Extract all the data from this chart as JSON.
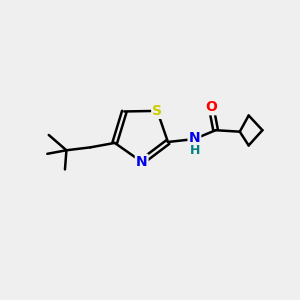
{
  "background_color": "#efefef",
  "bond_color": "#000000",
  "atom_colors": {
    "S": "#cccc00",
    "N": "#0000ee",
    "O": "#ff0000",
    "NH_N": "#0000ee",
    "NH_H": "#008080",
    "C": "#000000"
  },
  "bond_width": 1.8,
  "figsize": [
    3.0,
    3.0
  ],
  "dpi": 100,
  "xlim": [
    0,
    10
  ],
  "ylim": [
    0,
    10
  ]
}
